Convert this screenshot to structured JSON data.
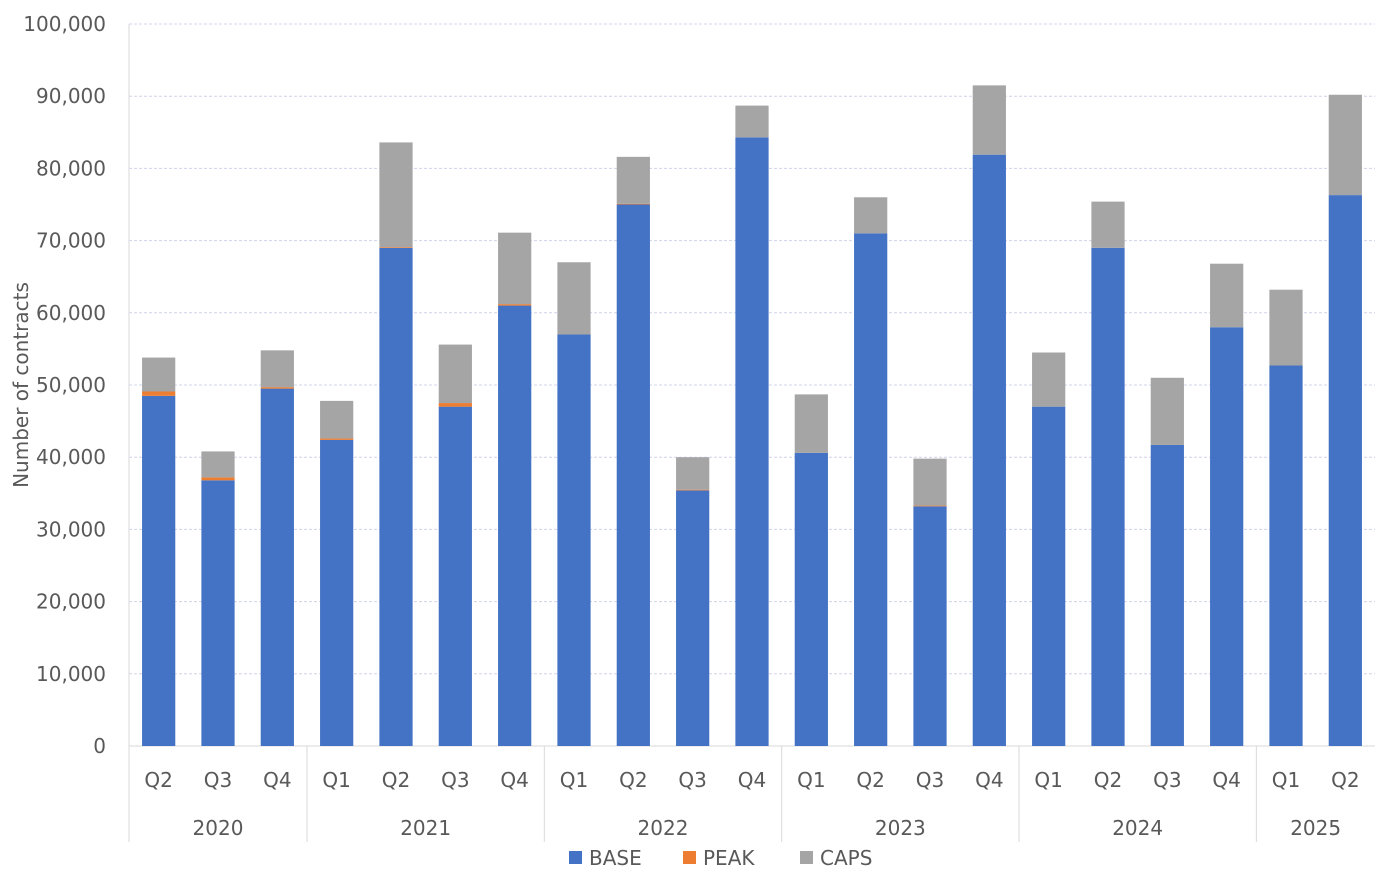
{
  "chart_data": {
    "type": "bar",
    "stacked": true,
    "ylabel": "Number of contracts",
    "xlabel": "",
    "ylim": [
      0,
      100000
    ],
    "yticks": [
      "0",
      "10,000",
      "20,000",
      "30,000",
      "40,000",
      "50,000",
      "60,000",
      "70,000",
      "80,000",
      "90,000",
      "100,000"
    ],
    "ytick_values": [
      0,
      10000,
      20000,
      30000,
      40000,
      50000,
      60000,
      70000,
      80000,
      90000,
      100000
    ],
    "grid": true,
    "legend_position": "bottom",
    "categories": [
      "Q2",
      "Q3",
      "Q4",
      "Q1",
      "Q2",
      "Q3",
      "Q4",
      "Q1",
      "Q2",
      "Q3",
      "Q4",
      "Q1",
      "Q2",
      "Q3",
      "Q4",
      "Q1",
      "Q2",
      "Q3",
      "Q4",
      "Q1",
      "Q2"
    ],
    "groups": [
      {
        "label": "2020",
        "count": 3
      },
      {
        "label": "2021",
        "count": 4
      },
      {
        "label": "2022",
        "count": 4
      },
      {
        "label": "2023",
        "count": 4
      },
      {
        "label": "2024",
        "count": 4
      },
      {
        "label": "2025",
        "count": 2
      }
    ],
    "series": [
      {
        "name": "BASE",
        "color": "#4472C4",
        "values": [
          48500,
          36800,
          49500,
          42400,
          69000,
          47000,
          61000,
          57000,
          75000,
          35400,
          84300,
          40600,
          71000,
          33200,
          81900,
          47000,
          69000,
          41700,
          58000,
          52700,
          76300
        ]
      },
      {
        "name": "PEAK",
        "color": "#ED7D31",
        "values": [
          600,
          400,
          200,
          200,
          100,
          500,
          200,
          0,
          100,
          100,
          0,
          0,
          0,
          100,
          0,
          0,
          0,
          0,
          0,
          0,
          0
        ]
      },
      {
        "name": "CAPS",
        "color": "#A5A5A5",
        "values": [
          4700,
          3600,
          5100,
          5200,
          14500,
          8100,
          9900,
          10000,
          6500,
          4500,
          4400,
          8100,
          5000,
          6500,
          9600,
          7500,
          6400,
          9300,
          8800,
          10500,
          13900
        ]
      }
    ]
  }
}
